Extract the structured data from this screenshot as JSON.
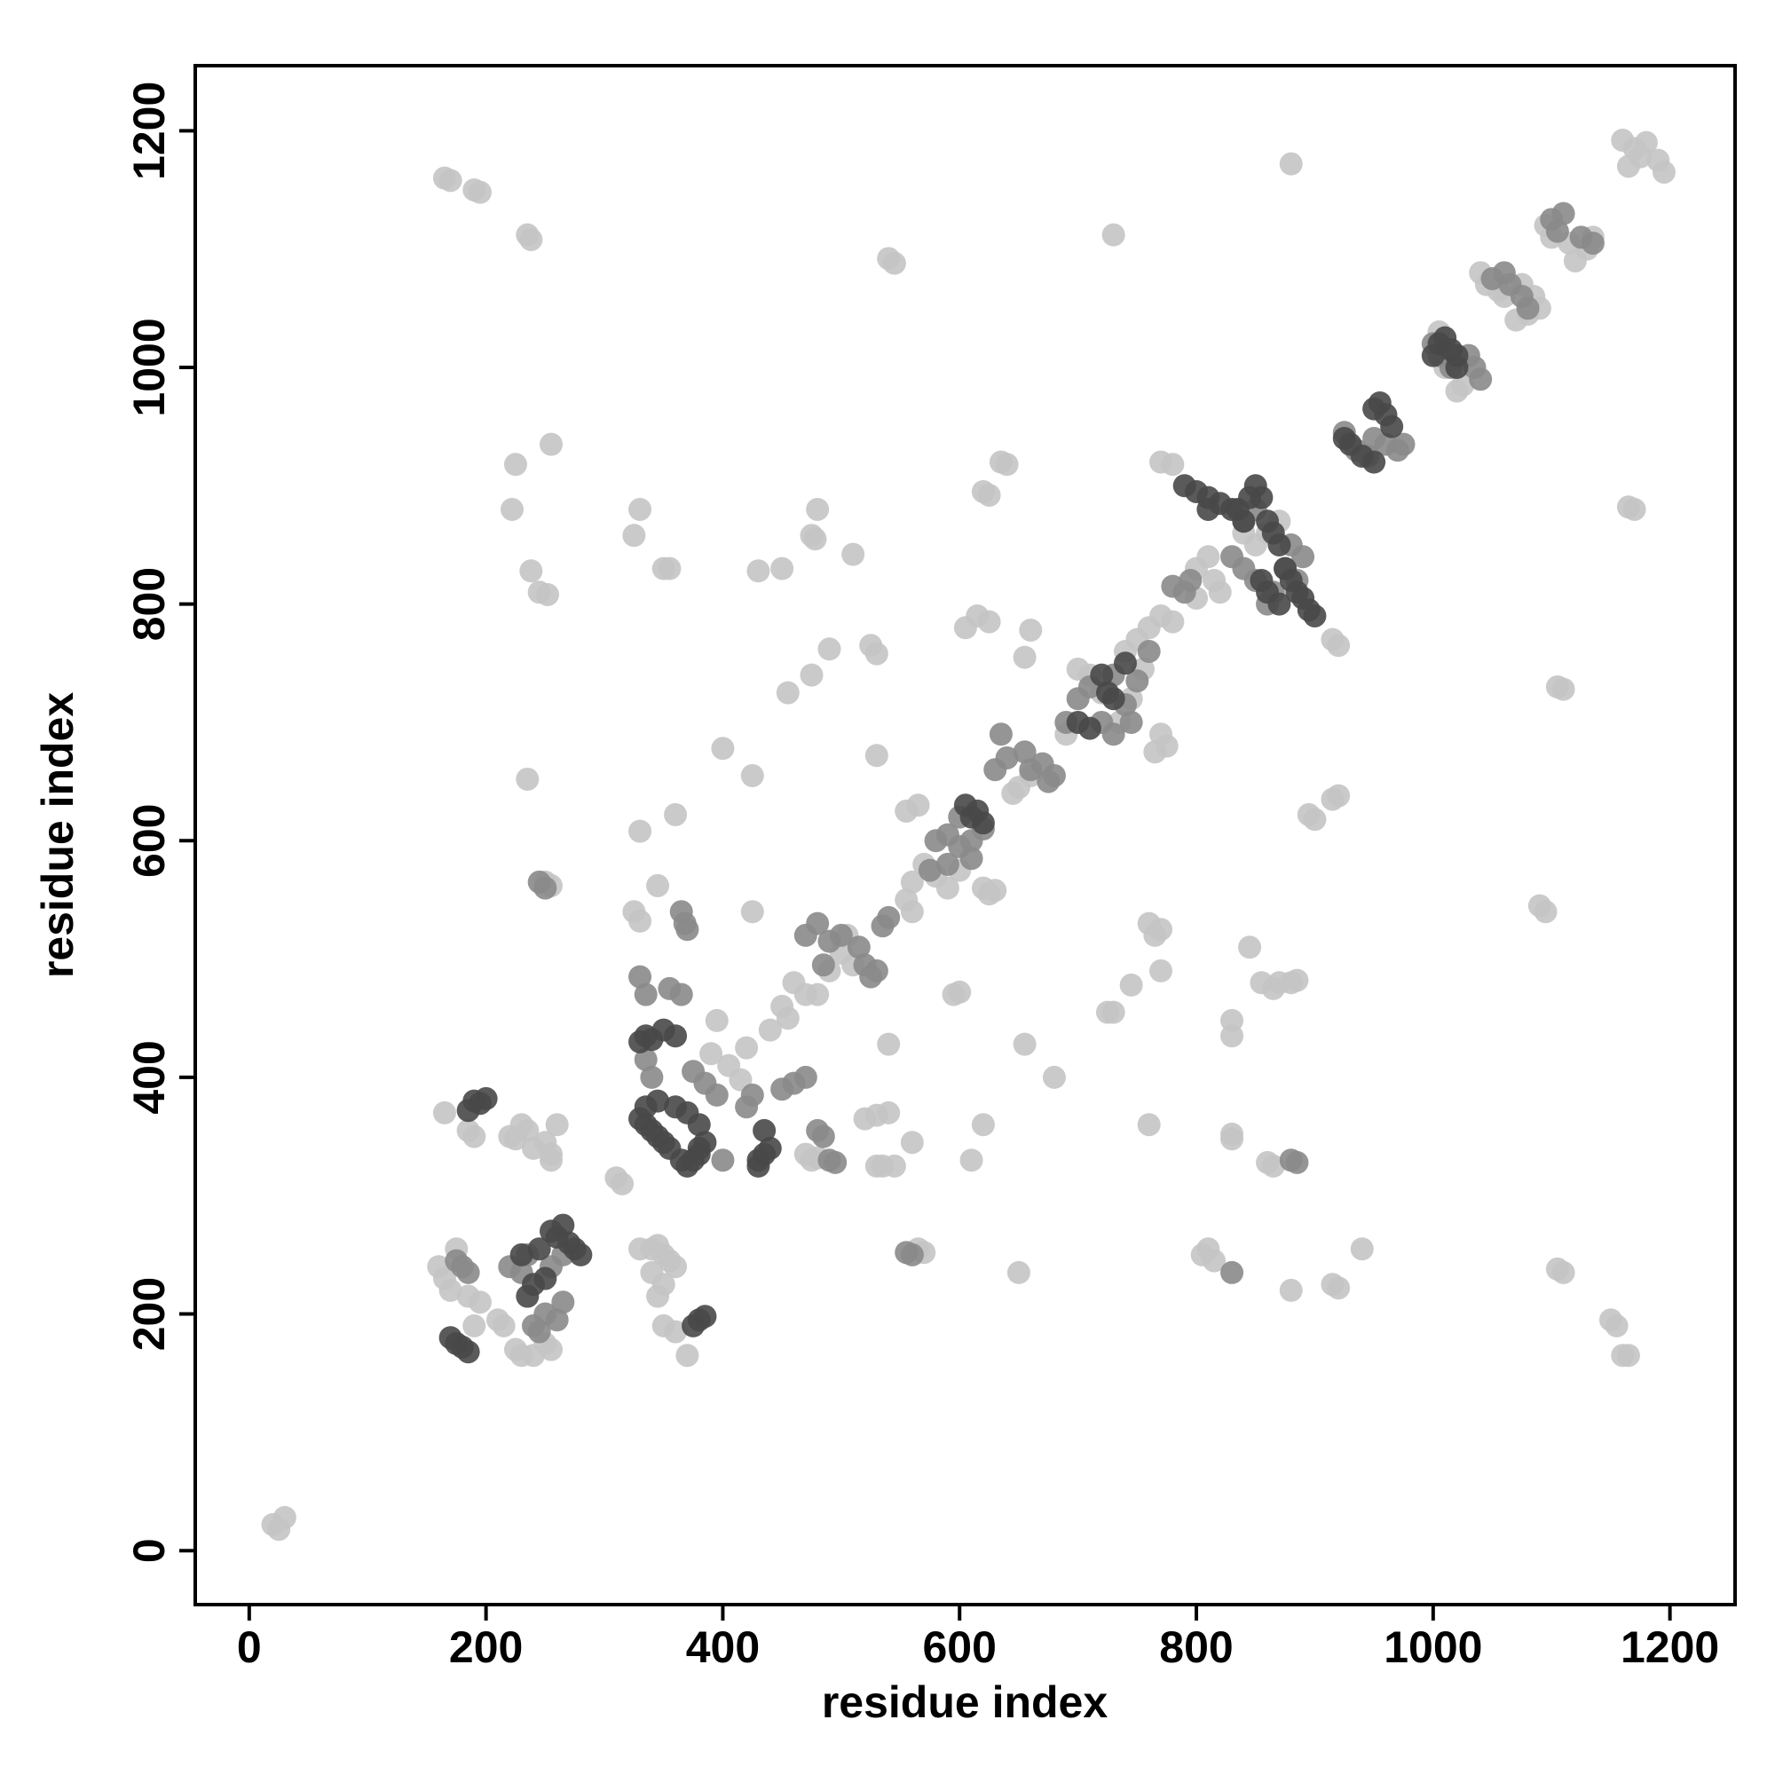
{
  "chart_data": {
    "type": "scatter",
    "xlabel": "residue index",
    "ylabel": "residue index",
    "xlim": [
      -45.6,
      1255
    ],
    "ylim": [
      -45.6,
      1255
    ],
    "xticks": [
      0,
      200,
      400,
      600,
      800,
      1000,
      1200
    ],
    "yticks": [
      0,
      200,
      400,
      600,
      800,
      1000,
      1200
    ],
    "series": [
      {
        "color": "#c4c4c4",
        "x": [
          20,
          30,
          25,
          165,
          170,
          190,
          195,
          235,
          238,
          540,
          545,
          730,
          880,
          1160,
          1170,
          1175,
          1180,
          1190,
          1195,
          1165,
          225,
          222,
          255,
          238,
          245,
          252,
          325,
          330,
          350,
          355,
          430,
          450,
          475,
          480,
          478,
          510,
          490,
          475,
          455,
          525,
          530,
          400,
          425,
          530,
          360,
          330,
          235,
          250,
          255,
          345,
          425,
          325,
          330,
          635,
          640,
          620,
          625,
          605,
          615,
          625,
          660,
          655,
          780,
          770,
          920,
          915,
          895,
          900,
          920,
          915,
          1090,
          1095,
          1110,
          1105,
          1170,
          1165,
          760,
          765,
          770,
          770,
          745,
          730,
          725,
          655,
          680,
          595,
          600,
          845,
          830,
          855,
          865,
          870,
          880,
          885,
          830,
          830,
          830,
          860,
          865,
          760,
          610,
          620,
          560,
          565,
          570,
          650,
          810,
          805,
          815,
          880,
          920,
          915,
          940,
          1110,
          1105,
          1150,
          1155,
          1160,
          1165,
          520,
          530,
          540,
          530,
          535,
          545,
          475,
          480,
          470,
          310,
          315,
          540,
          560,
          570,
          580,
          555,
          565,
          590,
          600,
          620,
          625,
          630,
          500,
          510,
          505,
          490,
          460,
          470,
          450,
          455,
          480,
          440,
          420,
          405,
          415,
          390,
          395,
          650,
          660,
          645,
          690,
          700,
          710,
          720,
          740,
          750,
          760,
          770,
          780,
          755,
          745,
          735,
          770,
          775,
          765,
          800,
          810,
          815,
          800,
          820,
          850,
          860,
          870,
          840,
          1040,
          1045,
          1055,
          1060,
          1070,
          1080,
          1090,
          1085,
          1075,
          1095,
          1100,
          1115,
          1130,
          1135,
          1120,
          1005,
          1010,
          1020,
          1025,
          165,
          185,
          190,
          160,
          165,
          170,
          175,
          185,
          195,
          190,
          210,
          215,
          225,
          230,
          240,
          250,
          255,
          220,
          225,
          235,
          240,
          250,
          255,
          260,
          255,
          230,
          330,
          340,
          345,
          350,
          355,
          360,
          340,
          350,
          345,
          350,
          360,
          370,
          555,
          560
        ],
        "values": [
          22,
          28,
          18,
          1160,
          1158,
          1150,
          1148,
          1112,
          1108,
          1092,
          1088,
          1112,
          1172,
          1192,
          1185,
          1178,
          1190,
          1175,
          1165,
          1170,
          918,
          880,
          935,
          828,
          810,
          808,
          858,
          880,
          830,
          830,
          828,
          830,
          858,
          880,
          855,
          842,
          762,
          740,
          725,
          765,
          758,
          678,
          655,
          672,
          622,
          608,
          652,
          565,
          562,
          562,
          540,
          540,
          532,
          920,
          918,
          895,
          892,
          780,
          790,
          785,
          778,
          755,
          918,
          920,
          765,
          770,
          622,
          618,
          638,
          635,
          545,
          540,
          728,
          730,
          880,
          882,
          530,
          520,
          525,
          490,
          478,
          455,
          455,
          428,
          400,
          470,
          472,
          510,
          435,
          480,
          475,
          480,
          480,
          482,
          448,
          352,
          348,
          328,
          325,
          360,
          330,
          360,
          345,
          255,
          252,
          235,
          255,
          250,
          245,
          220,
          222,
          225,
          255,
          235,
          238,
          195,
          190,
          165,
          165,
          365,
          368,
          370,
          325,
          325,
          325,
          330,
          332,
          335,
          315,
          310,
          428,
          565,
          580,
          570,
          625,
          630,
          560,
          575,
          560,
          555,
          558,
          505,
          495,
          520,
          490,
          480,
          470,
          460,
          450,
          470,
          440,
          425,
          410,
          398,
          420,
          448,
          645,
          655,
          640,
          690,
          745,
          740,
          725,
          760,
          770,
          780,
          790,
          785,
          745,
          720,
          700,
          690,
          680,
          675,
          830,
          840,
          820,
          805,
          810,
          850,
          860,
          870,
          860,
          1080,
          1070,
          1065,
          1060,
          1040,
          1045,
          1050,
          1060,
          1070,
          1120,
          1110,
          1105,
          1100,
          1110,
          1090,
          1030,
          1000,
          980,
          985,
          370,
          355,
          350,
          240,
          230,
          220,
          255,
          215,
          210,
          190,
          195,
          190,
          170,
          165,
          165,
          175,
          170,
          350,
          348,
          355,
          340,
          345,
          335,
          360,
          330,
          360,
          255,
          255,
          258,
          250,
          245,
          240,
          235,
          225,
          215,
          190,
          185,
          165,
          550,
          540
        ]
      },
      {
        "color": "#8a8a8a",
        "x": [
          245,
          250,
          555,
          560,
          400,
          490,
          495,
          480,
          485,
          365,
          368,
          370,
          330,
          335,
          355,
          365,
          420,
          425,
          340,
          335,
          375,
          385,
          395,
          460,
          470,
          450,
          470,
          480,
          490,
          500,
          515,
          520,
          525,
          530,
          540,
          535,
          485,
          580,
          590,
          600,
          610,
          620,
          600,
          590,
          575,
          610,
          630,
          640,
          655,
          660,
          670,
          675,
          680,
          635,
          690,
          700,
          710,
          720,
          730,
          740,
          750,
          760,
          730,
          745,
          780,
          790,
          795,
          830,
          840,
          850,
          860,
          865,
          875,
          880,
          885,
          890,
          840,
          850,
          925,
          935,
          950,
          960,
          970,
          975,
          945,
          1000,
          1005,
          1015,
          1030,
          1035,
          1040,
          1050,
          1060,
          1065,
          1075,
          1080,
          1100,
          1105,
          1110,
          1125,
          1135,
          240,
          245,
          250,
          260,
          265,
          230,
          235,
          220,
          255,
          265,
          175,
          180,
          185,
          880,
          885,
          830
        ],
        "values": [
          565,
          560,
          252,
          250,
          330,
          330,
          328,
          355,
          350,
          540,
          530,
          525,
          485,
          470,
          475,
          470,
          375,
          385,
          400,
          415,
          405,
          395,
          385,
          395,
          400,
          390,
          520,
          530,
          515,
          520,
          510,
          495,
          485,
          490,
          535,
          528,
          495,
          600,
          605,
          595,
          600,
          610,
          620,
          580,
          575,
          585,
          660,
          670,
          675,
          660,
          665,
          650,
          655,
          690,
          700,
          720,
          730,
          700,
          740,
          715,
          735,
          760,
          690,
          700,
          815,
          810,
          820,
          840,
          830,
          820,
          800,
          810,
          830,
          850,
          820,
          840,
          870,
          880,
          945,
          930,
          940,
          935,
          930,
          935,
          925,
          1020,
          1010,
          1000,
          1010,
          1000,
          990,
          1075,
          1080,
          1070,
          1060,
          1050,
          1125,
          1115,
          1130,
          1110,
          1105,
          190,
          185,
          200,
          195,
          210,
          235,
          250,
          240,
          240,
          250,
          245,
          240,
          235,
          330,
          328,
          235
        ]
      },
      {
        "color": "#484848",
        "x": [
          170,
          175,
          180,
          185,
          190,
          195,
          200,
          185,
          255,
          260,
          265,
          270,
          275,
          280,
          245,
          250,
          240,
          235,
          230,
          330,
          335,
          340,
          350,
          360,
          330,
          335,
          340,
          345,
          350,
          355,
          365,
          370,
          375,
          380,
          385,
          380,
          370,
          360,
          345,
          335,
          380,
          375,
          380,
          385,
          430,
          435,
          440,
          435,
          430,
          610,
          615,
          620,
          605,
          790,
          800,
          810,
          820,
          830,
          840,
          850,
          855,
          860,
          865,
          870,
          875,
          880,
          885,
          890,
          895,
          900,
          860,
          870,
          855,
          925,
          930,
          940,
          950,
          955,
          960,
          965,
          950,
          1000,
          1005,
          1010,
          1015,
          1020,
          1020,
          700,
          710,
          725,
          730,
          720,
          740,
          835,
          845,
          810
        ],
        "values": [
          180,
          175,
          172,
          168,
          380,
          378,
          382,
          372,
          270,
          265,
          275,
          260,
          255,
          250,
          255,
          230,
          225,
          215,
          250,
          430,
          435,
          432,
          440,
          435,
          365,
          360,
          355,
          350,
          345,
          340,
          330,
          325,
          330,
          335,
          345,
          360,
          370,
          375,
          380,
          375,
          340,
          190,
          195,
          198,
          330,
          335,
          340,
          355,
          325,
          620,
          625,
          615,
          630,
          900,
          895,
          890,
          885,
          880,
          870,
          900,
          890,
          870,
          860,
          850,
          830,
          820,
          810,
          805,
          795,
          790,
          810,
          800,
          820,
          940,
          935,
          925,
          920,
          970,
          960,
          950,
          965,
          1010,
          1020,
          1025,
          1015,
          1010,
          1000,
          700,
          695,
          725,
          720,
          740,
          750,
          880,
          890,
          880
        ]
      }
    ]
  }
}
